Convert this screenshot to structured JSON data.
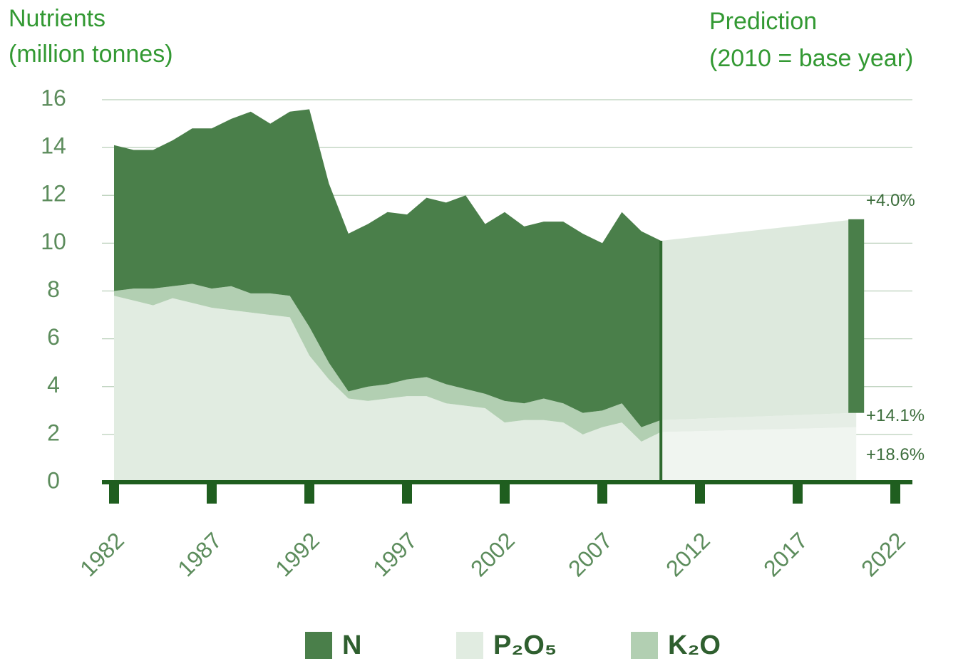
{
  "chart_data": {
    "type": "stacked_area",
    "title": "Nutrients",
    "subtitle": "(million tonnes)",
    "prediction_label": "Prediction",
    "prediction_note": "(2010 = base year)",
    "x": [
      1982,
      1983,
      1984,
      1985,
      1986,
      1987,
      1988,
      1989,
      1990,
      1991,
      1992,
      1993,
      1994,
      1995,
      1996,
      1997,
      1998,
      1999,
      2000,
      2001,
      2002,
      2003,
      2004,
      2005,
      2006,
      2007,
      2008,
      2009,
      2010,
      2020
    ],
    "series": [
      {
        "name": "P₂O₅",
        "color": "#e1ece1",
        "values": [
          7.8,
          7.6,
          7.4,
          7.7,
          7.5,
          7.3,
          7.2,
          7.1,
          7.0,
          6.9,
          5.3,
          4.3,
          3.5,
          3.4,
          3.5,
          3.6,
          3.6,
          3.3,
          3.2,
          3.1,
          2.5,
          2.6,
          2.6,
          2.5,
          2.0,
          2.3,
          2.5,
          1.7,
          2.1,
          2.3
        ]
      },
      {
        "name": "K₂O",
        "color": "#b2cfb2",
        "values": [
          0.2,
          0.5,
          0.7,
          0.5,
          0.8,
          0.8,
          1.0,
          0.8,
          0.9,
          0.9,
          1.2,
          0.7,
          0.3,
          0.6,
          0.6,
          0.7,
          0.8,
          0.8,
          0.7,
          0.6,
          0.9,
          0.7,
          0.9,
          0.8,
          0.9,
          0.7,
          0.8,
          0.6,
          0.5,
          0.6
        ]
      },
      {
        "name": "N",
        "color": "#4a7f4a",
        "values": [
          6.1,
          5.8,
          5.8,
          6.1,
          6.5,
          6.7,
          7.0,
          7.6,
          7.1,
          7.7,
          9.1,
          7.5,
          6.6,
          6.8,
          7.2,
          6.9,
          7.5,
          7.6,
          8.1,
          7.1,
          7.9,
          7.4,
          7.4,
          7.6,
          7.5,
          7.0,
          8.0,
          8.2,
          7.5,
          8.1
        ]
      }
    ],
    "annotations": [
      "+4.0%",
      "+14.1%",
      "+18.6%"
    ],
    "xlim": [
      1982,
      2022
    ],
    "xticks": [
      1982,
      1987,
      1992,
      1997,
      2002,
      2007,
      2012,
      2017,
      2022
    ],
    "ylim": [
      0,
      16
    ],
    "yticks": [
      0,
      2,
      4,
      6,
      8,
      10,
      12,
      14,
      16
    ],
    "grid": true
  }
}
